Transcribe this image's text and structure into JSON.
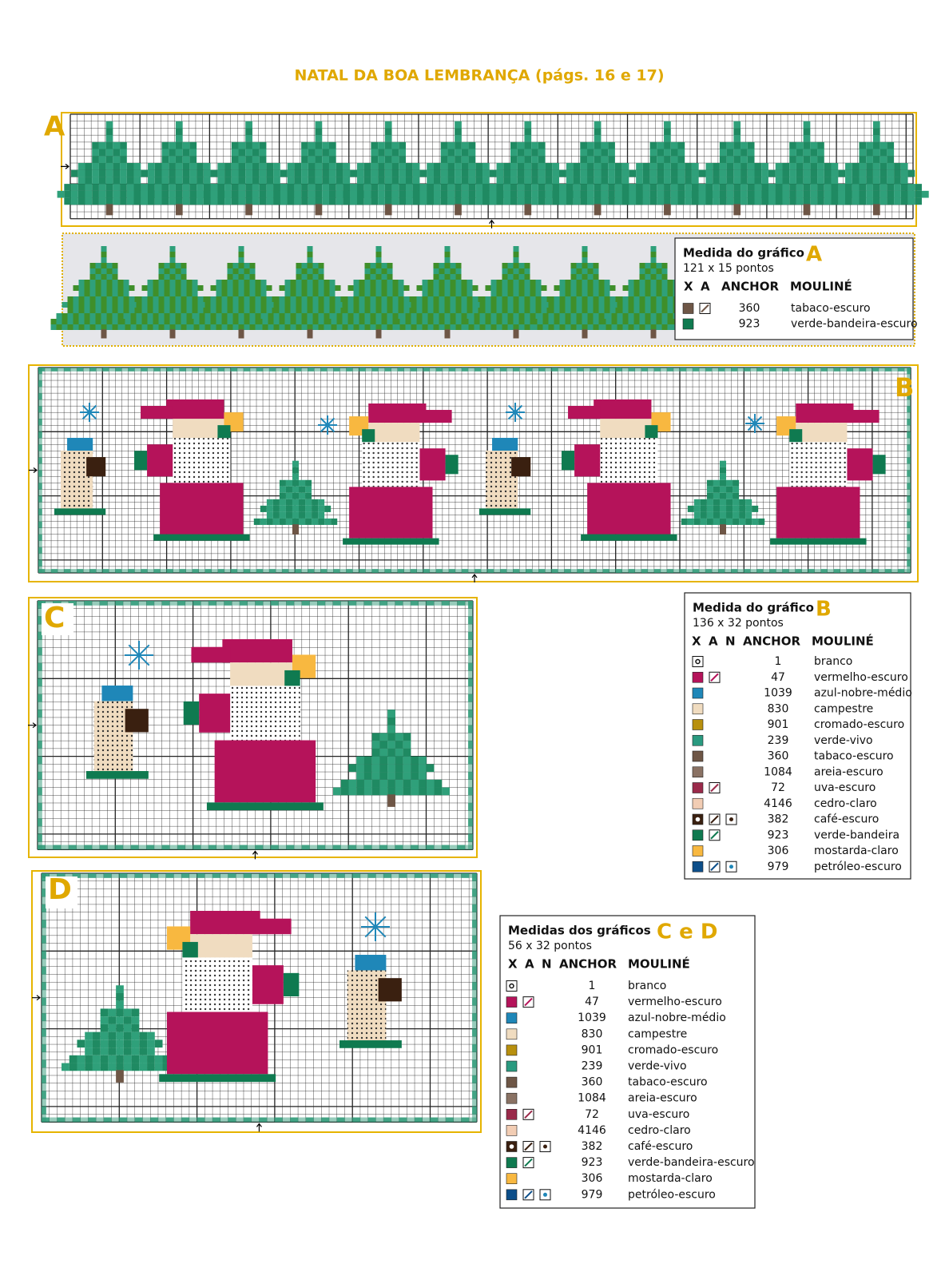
{
  "title": "NATAL DA BOA LEMBRANÇA (págs. 16 e 17)",
  "charts": [
    {
      "letter": "A"
    },
    {
      "letter": "B"
    },
    {
      "letter": "C"
    },
    {
      "letter": "D"
    }
  ],
  "legends": [
    {
      "heading": "Medida do gráfico",
      "letter": "A",
      "size": "121 x 15 pontos",
      "columns": [
        "X",
        "A",
        "ANCHOR",
        "MOULINÉ"
      ],
      "rows": [
        {
          "color": "#6e5646",
          "symbols": [
            "slash"
          ],
          "code": "360",
          "name": "tabaco-escuro"
        },
        {
          "color": "#0f7a50",
          "symbols": [],
          "code": "923",
          "name": "verde-bandeira-escuro"
        }
      ]
    },
    {
      "heading": "Medida do gráfico",
      "letter": "B",
      "size": "136 x 32 pontos",
      "columns": [
        "X",
        "A",
        "N",
        "ANCHOR",
        "MOULINÉ"
      ],
      "rows": [
        {
          "color": "#ffffff",
          "symbols": [
            "flower"
          ],
          "code": "1",
          "name": "branco"
        },
        {
          "color": "#b5135a",
          "symbols": [
            "slash"
          ],
          "code": "47",
          "name": "vermelho-escuro"
        },
        {
          "color": "#1f87b8",
          "symbols": [],
          "code": "1039",
          "name": "azul-nobre-médio"
        },
        {
          "color": "#f0dcc0",
          "symbols": [],
          "code": "830",
          "name": "campestre"
        },
        {
          "color": "#b8900e",
          "symbols": [],
          "code": "901",
          "name": "cromado-escuro"
        },
        {
          "color": "#2a9a80",
          "symbols": [],
          "code": "239",
          "name": "verde-vivo"
        },
        {
          "color": "#6e5646",
          "symbols": [],
          "code": "360",
          "name": "tabaco-escuro"
        },
        {
          "color": "#8a7264",
          "symbols": [],
          "code": "1084",
          "name": "areia-escuro"
        },
        {
          "color": "#9a2a4a",
          "symbols": [
            "slash"
          ],
          "code": "72",
          "name": "uva-escuro"
        },
        {
          "color": "#f2cdb4",
          "symbols": [],
          "code": "4146",
          "name": "cedro-claro"
        },
        {
          "color": "#3a2010",
          "symbols": [
            "circle",
            "slash",
            "dot"
          ],
          "code": "382",
          "name": "café-escuro"
        },
        {
          "color": "#0f7a50",
          "symbols": [
            "slash"
          ],
          "code": "923",
          "name": "verde-bandeira"
        },
        {
          "color": "#f8b840",
          "symbols": [],
          "code": "306",
          "name": "mostarda-claro"
        },
        {
          "color": "#0d4f8a",
          "symbols": [
            "slash",
            "dot"
          ],
          "code": "979",
          "name": "petróleo-escuro"
        }
      ]
    },
    {
      "heading": "Medidas dos gráficos",
      "letter": "C e D",
      "size": "56 x 32 pontos",
      "columns": [
        "X",
        "A",
        "N",
        "ANCHOR",
        "MOULINÉ"
      ],
      "rows": [
        {
          "color": "#ffffff",
          "symbols": [
            "flower"
          ],
          "code": "1",
          "name": "branco"
        },
        {
          "color": "#b5135a",
          "symbols": [
            "slash"
          ],
          "code": "47",
          "name": "vermelho-escuro"
        },
        {
          "color": "#1f87b8",
          "symbols": [],
          "code": "1039",
          "name": "azul-nobre-médio"
        },
        {
          "color": "#f0dcc0",
          "symbols": [],
          "code": "830",
          "name": "campestre"
        },
        {
          "color": "#b8900e",
          "symbols": [],
          "code": "901",
          "name": "cromado-escuro"
        },
        {
          "color": "#2a9a80",
          "symbols": [],
          "code": "239",
          "name": "verde-vivo"
        },
        {
          "color": "#6e5646",
          "symbols": [],
          "code": "360",
          "name": "tabaco-escuro"
        },
        {
          "color": "#8a7264",
          "symbols": [],
          "code": "1084",
          "name": "areia-escuro"
        },
        {
          "color": "#9a2a4a",
          "symbols": [
            "slash"
          ],
          "code": "72",
          "name": "uva-escuro"
        },
        {
          "color": "#f2cdb4",
          "symbols": [],
          "code": "4146",
          "name": "cedro-claro"
        },
        {
          "color": "#3a2010",
          "symbols": [
            "circle",
            "slash",
            "dot"
          ],
          "code": "382",
          "name": "café-escuro"
        },
        {
          "color": "#0f7a50",
          "symbols": [
            "slash"
          ],
          "code": "923",
          "name": "verde-bandeira-escuro"
        },
        {
          "color": "#f8b840",
          "symbols": [],
          "code": "306",
          "name": "mostarda-claro"
        },
        {
          "color": "#0d4f8a",
          "symbols": [
            "slash",
            "dot"
          ],
          "code": "979",
          "name": "petróleo-escuro"
        }
      ]
    }
  ]
}
